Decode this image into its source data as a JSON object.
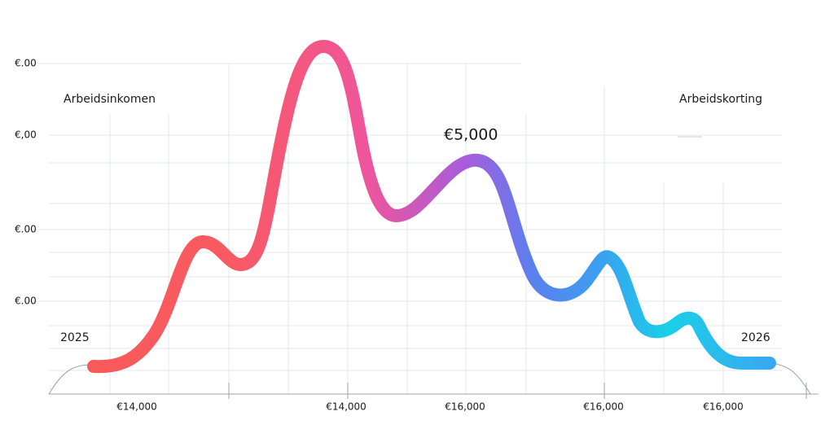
{
  "y_axis": {
    "labels": [
      "€.00",
      "€,00",
      "€.00",
      "€.00"
    ]
  },
  "x_axis": {
    "labels": [
      "€14,000",
      "€14,000",
      "€16,000",
      "€16,000",
      "€16,000"
    ]
  },
  "annotations": {
    "left_title": "Arbeidsinkomen",
    "right_title": "Arbeidskorting",
    "peak_label": "€5,000",
    "start_year": "2025",
    "end_year": "2026"
  }
}
